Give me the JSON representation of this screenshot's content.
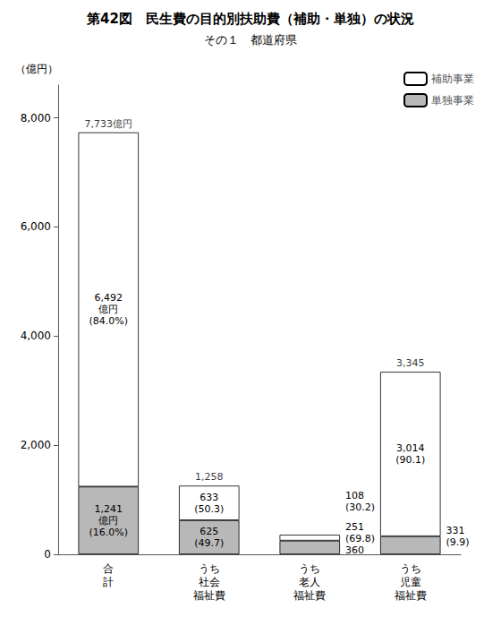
{
  "chart_data": {
    "type": "bar",
    "title": "第42図　民生費の目的別扶助費（補助・単独）の状況",
    "subtitle": "その１　都道府県",
    "ylabel": "（億円）",
    "categories": [
      "合\n計",
      "うち\n社会\n福祉費",
      "うち\n老人\n福祉費",
      "うち\n児童\n福祉費"
    ],
    "series": [
      {
        "name": "単独事業",
        "color": "#b8b8b8",
        "values": [
          1241,
          625,
          251,
          331
        ],
        "value_labels": [
          "1,241\n億円\n(16.0%)",
          "625\n(49.7)",
          "251\n(69.8)\n360",
          "331\n(9.9)"
        ]
      },
      {
        "name": "補助事業",
        "color": "#ffffff",
        "values": [
          6492,
          633,
          108,
          3014
        ],
        "value_labels": [
          "6,492\n億円\n(84.0%)",
          "633\n(50.3)",
          "108\n(30.2)",
          "3,014\n(90.1)"
        ]
      }
    ],
    "annotations": [
      {
        "category": "合\n計",
        "value": 7733,
        "text": "7,733億円"
      },
      {
        "category": "うち\n社会\n福祉費",
        "value": 1258,
        "text": "1,258"
      },
      {
        "category": "うち\n児童\n福祉費",
        "value": 3345,
        "text": "3,345"
      }
    ],
    "stacked": true,
    "data_labels": true,
    "legend": "upper right",
    "grid": false,
    "ylim": [
      0,
      8600
    ],
    "yticks": [
      0,
      {
        "value": 2000,
        "label": "2,000"
      },
      {
        "value": 4000,
        "label": "4,000"
      },
      {
        "value": 6000,
        "label": "6,000"
      },
      {
        "value": 8000,
        "label": "8,000"
      }
    ]
  }
}
